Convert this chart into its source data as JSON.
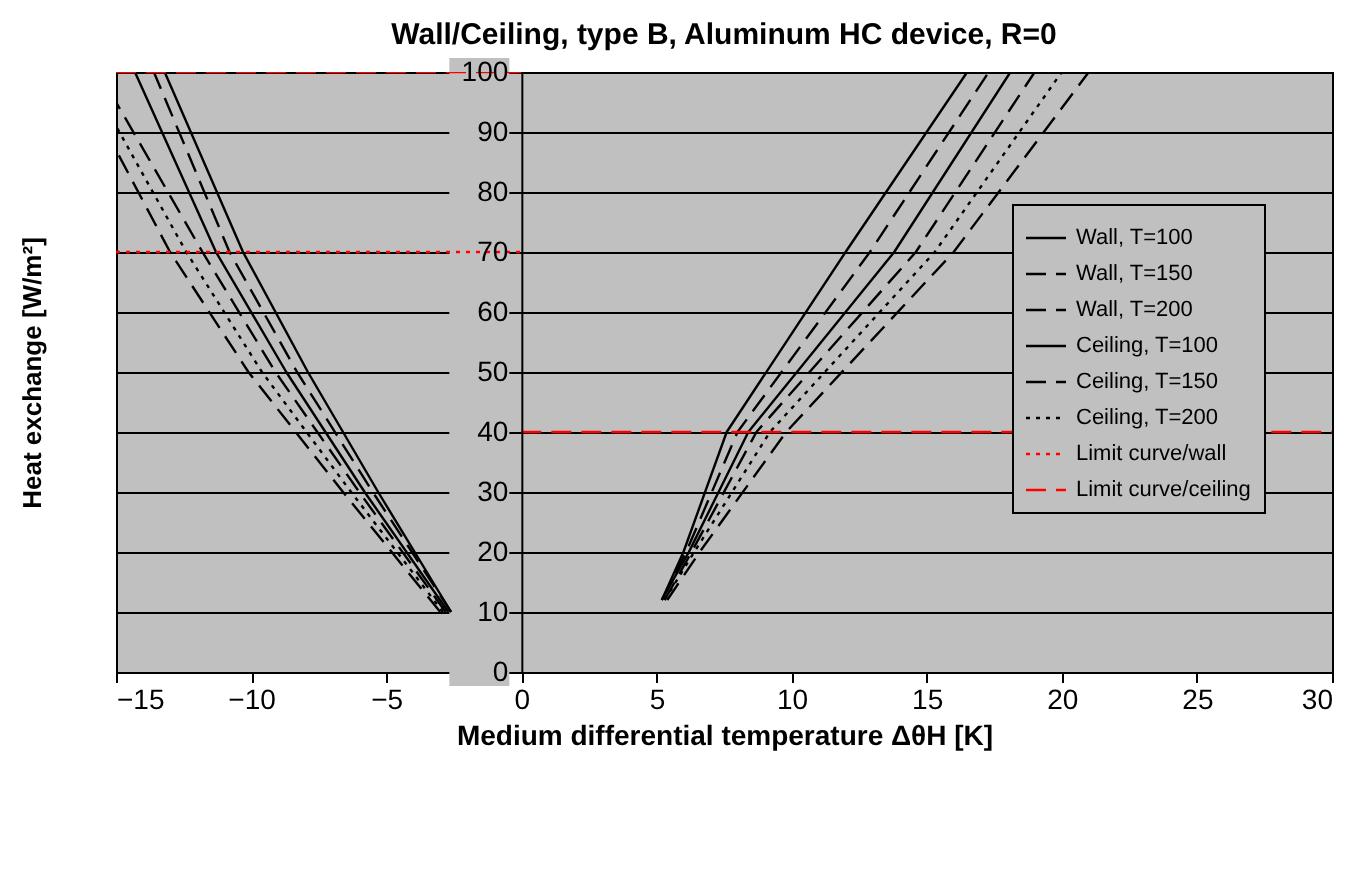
{
  "chart_data": {
    "type": "line",
    "title": "Wall/Ceiling, type B, Aluminum HC device, R=0",
    "xlabel": "Medium differential temperature ΔθH [K]",
    "ylabel": "Heat exchange [W/m²]",
    "xlim": [
      -15,
      30
    ],
    "xticks": [
      -15,
      -10,
      -5,
      0,
      5,
      10,
      15,
      20,
      25,
      30
    ],
    "ylim": [
      0,
      100
    ],
    "yticks": [
      0,
      10,
      20,
      30,
      40,
      50,
      60,
      70,
      80,
      90,
      100
    ],
    "grid": "y",
    "legend": "right",
    "series": [
      {
        "name": "Wall, T=100",
        "color": "#000000",
        "line_style": "solid",
        "x": [
          -2.7,
          -5.8,
          -8.7,
          -11.3,
          -14.3
        ],
        "values": [
          10,
          30,
          50,
          70,
          100
        ]
      },
      {
        "name": "Wall, T=150",
        "color": "#000000",
        "line_style": "dashed",
        "x": [
          -2.8,
          -6.0,
          -9.1,
          -11.8,
          -15
        ],
        "values": [
          10,
          30,
          50,
          70,
          95
        ]
      },
      {
        "name": "Wall, T=200",
        "color": "#000000",
        "line_style": "dashed",
        "x": [
          -3.0,
          -6.6,
          -10.1,
          -13.0,
          -15
        ],
        "values": [
          10,
          30,
          50,
          70,
          87
        ]
      },
      {
        "name": "Ceiling, T=100",
        "color": "#000000",
        "line_style": "solid",
        "x": [
          -2.6,
          -5.3,
          -7.9,
          -10.3,
          -13.2
        ],
        "values": [
          10,
          30,
          50,
          70,
          100
        ]
      },
      {
        "name": "Ceiling, T=150",
        "color": "#000000",
        "line_style": "dashed",
        "x": [
          -2.6,
          -5.5,
          -8.3,
          -10.8,
          -13.6
        ],
        "values": [
          10,
          30,
          50,
          70,
          100
        ]
      },
      {
        "name": "Ceiling, T=200",
        "color": "#000000",
        "line_style": "dotted",
        "x": [
          -2.9,
          -6.3,
          -9.6,
          -12.4,
          -15
        ],
        "values": [
          10,
          30,
          50,
          70,
          91
        ]
      },
      {
        "name": "Limit curve/wall",
        "color": "#ff0000",
        "line_style": "dotted",
        "x": [
          -15,
          0
        ],
        "values": [
          70,
          70
        ]
      },
      {
        "name": "Limit curve/ceiling",
        "color": "#ff0000",
        "line_style": "dashed",
        "x": [
          -15,
          0
        ],
        "values": [
          100,
          100
        ]
      },
      {
        "color": "#000000",
        "line_style": "solid",
        "x": [
          5.2,
          6.2,
          8.4,
          13.8,
          18.1
        ],
        "values": [
          12,
          20,
          40,
          70,
          100
        ]
      },
      {
        "color": "#000000",
        "line_style": "dashed",
        "x": [
          5.3,
          6.3,
          8.7,
          14.6,
          19.0
        ],
        "values": [
          12,
          20,
          40,
          70,
          100
        ]
      },
      {
        "color": "#000000",
        "line_style": "dashed",
        "x": [
          5.4,
          6.6,
          9.8,
          16.0,
          21.0
        ],
        "values": [
          12,
          20,
          40,
          70,
          100
        ]
      },
      {
        "color": "#000000",
        "line_style": "solid",
        "x": [
          5.2,
          6.0,
          7.6,
          12.0,
          16.5
        ],
        "values": [
          12,
          20,
          40,
          70,
          100
        ]
      },
      {
        "color": "#000000",
        "line_style": "dashed",
        "x": [
          5.2,
          6.1,
          8.0,
          12.9,
          17.3
        ],
        "values": [
          12,
          20,
          40,
          70,
          100
        ]
      },
      {
        "color": "#000000",
        "line_style": "dotted",
        "x": [
          5.3,
          6.4,
          9.2,
          15.3,
          20.0
        ],
        "values": [
          12,
          20,
          40,
          70,
          100
        ]
      },
      {
        "color": "#ff0000",
        "line_style": "dashed",
        "x": [
          0,
          30
        ],
        "values": [
          40,
          40
        ]
      }
    ]
  }
}
